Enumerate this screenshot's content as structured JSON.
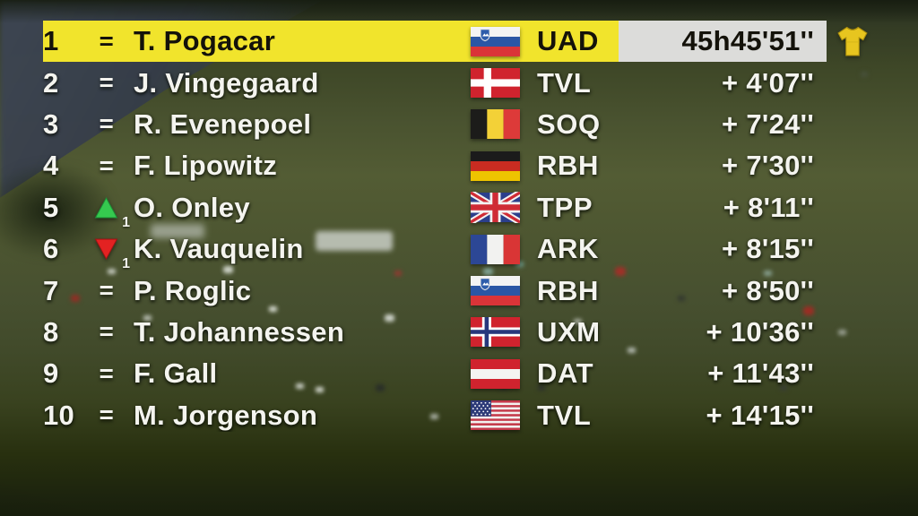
{
  "leaderboard": {
    "equals_symbol": "=",
    "rows": [
      {
        "rank": "1",
        "trend": "same",
        "name": "T. Pogacar",
        "flag": "slovenia",
        "team": "UAD",
        "time": "45h45'51''",
        "leader": true,
        "jersey": "yellow"
      },
      {
        "rank": "2",
        "trend": "same",
        "name": "J. Vingegaard",
        "flag": "denmark",
        "team": "TVL",
        "time": "+ 4'07''"
      },
      {
        "rank": "3",
        "trend": "same",
        "name": "R. Evenepoel",
        "flag": "belgium",
        "team": "SOQ",
        "time": "+ 7'24''"
      },
      {
        "rank": "4",
        "trend": "same",
        "name": "F. Lipowitz",
        "flag": "germany",
        "team": "RBH",
        "time": "+ 7'30''"
      },
      {
        "rank": "5",
        "trend": "up",
        "trend_delta": "1",
        "name": "O. Onley",
        "flag": "united-kingdom",
        "team": "TPP",
        "time": "+ 8'11''"
      },
      {
        "rank": "6",
        "trend": "down",
        "trend_delta": "1",
        "name": "K. Vauquelin",
        "flag": "france",
        "team": "ARK",
        "time": "+ 8'15''"
      },
      {
        "rank": "7",
        "trend": "same",
        "name": "P. Roglic",
        "flag": "slovenia",
        "team": "RBH",
        "time": "+ 8'50''"
      },
      {
        "rank": "8",
        "trend": "same",
        "name": "T. Johannessen",
        "flag": "norway",
        "team": "UXM",
        "time": "+ 10'36''"
      },
      {
        "rank": "9",
        "trend": "same",
        "name": "F. Gall",
        "flag": "austria",
        "team": "DAT",
        "time": "+ 11'43''"
      },
      {
        "rank": "10",
        "trend": "same",
        "name": "M. Jorgenson",
        "flag": "united-states",
        "team": "TVL",
        "time": "+ 14'15''"
      }
    ],
    "colors": {
      "highlight_yellow": "#f1e42c",
      "time_box_gray": "#dcdcda",
      "up_green": "#35c94f",
      "down_red": "#e32222",
      "jersey_yellow": "#e7c51f"
    }
  }
}
